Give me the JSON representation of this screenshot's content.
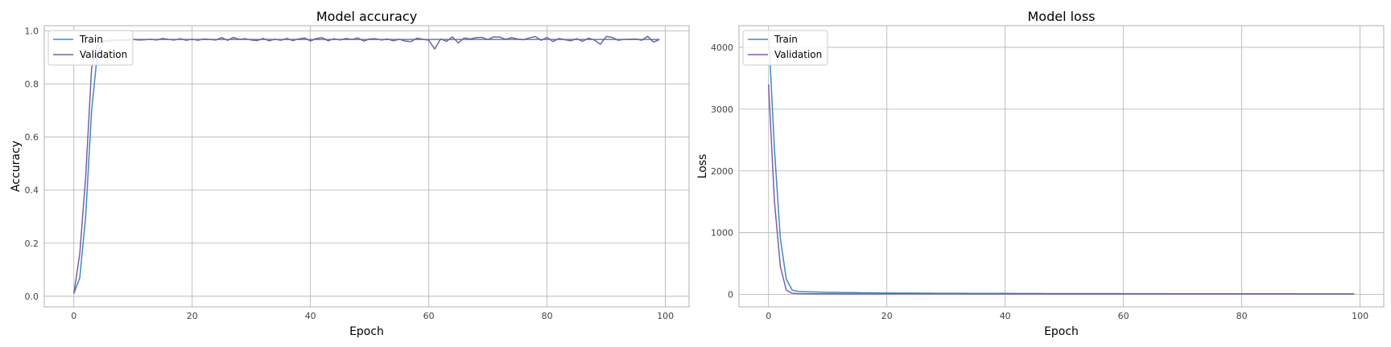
{
  "colors": {
    "train": "#3b8bc2",
    "validation": "#7b5ea7",
    "grid": "#b0b0b0",
    "frame": "#b0b0b0"
  },
  "chart_data": [
    {
      "type": "line",
      "title": "Model accuracy",
      "xlabel": "Epoch",
      "ylabel": "Accuracy",
      "xlim": [
        -5,
        104
      ],
      "ylim": [
        -0.04,
        1.02
      ],
      "xticks": [
        0,
        20,
        40,
        60,
        80,
        100
      ],
      "yticks": [
        0.0,
        0.2,
        0.4,
        0.6,
        0.8,
        1.0
      ],
      "ytick_labels": [
        "0.0",
        "0.2",
        "0.4",
        "0.6",
        "0.8",
        "1.0"
      ],
      "grid": true,
      "legend": "upper left",
      "series": [
        {
          "name": "Train",
          "values": [
            0.01,
            0.07,
            0.3,
            0.7,
            0.92,
            0.96,
            0.965,
            0.966,
            0.967,
            0.967,
            0.968,
            0.968,
            0.968,
            0.968,
            0.968,
            0.968,
            0.968,
            0.968,
            0.968,
            0.968,
            0.968,
            0.968,
            0.968,
            0.968,
            0.968,
            0.968,
            0.968,
            0.968,
            0.968,
            0.968,
            0.968,
            0.968,
            0.968,
            0.968,
            0.968,
            0.968,
            0.968,
            0.968,
            0.968,
            0.968,
            0.968,
            0.968,
            0.968,
            0.968,
            0.968,
            0.968,
            0.968,
            0.968,
            0.968,
            0.968,
            0.968,
            0.968,
            0.968,
            0.968,
            0.968,
            0.968,
            0.968,
            0.968,
            0.968,
            0.968,
            0.968,
            0.968,
            0.968,
            0.968,
            0.968,
            0.968,
            0.968,
            0.968,
            0.968,
            0.968,
            0.968,
            0.968,
            0.968,
            0.968,
            0.968,
            0.968,
            0.968,
            0.968,
            0.968,
            0.968,
            0.968,
            0.968,
            0.968,
            0.968,
            0.968,
            0.968,
            0.968,
            0.968,
            0.968,
            0.968,
            0.968,
            0.968,
            0.968,
            0.968,
            0.968,
            0.968,
            0.968,
            0.968,
            0.968,
            0.968
          ]
        },
        {
          "name": "Validation",
          "values": [
            0.01,
            0.16,
            0.45,
            0.86,
            0.95,
            0.962,
            0.963,
            0.965,
            0.966,
            0.964,
            0.968,
            0.966,
            0.967,
            0.969,
            0.966,
            0.972,
            0.968,
            0.966,
            0.971,
            0.965,
            0.969,
            0.965,
            0.97,
            0.968,
            0.966,
            0.975,
            0.965,
            0.976,
            0.968,
            0.971,
            0.966,
            0.964,
            0.972,
            0.963,
            0.969,
            0.965,
            0.972,
            0.964,
            0.97,
            0.974,
            0.962,
            0.972,
            0.975,
            0.963,
            0.971,
            0.966,
            0.972,
            0.968,
            0.974,
            0.962,
            0.97,
            0.971,
            0.966,
            0.97,
            0.963,
            0.969,
            0.962,
            0.96,
            0.973,
            0.969,
            0.965,
            0.932,
            0.97,
            0.961,
            0.978,
            0.955,
            0.974,
            0.97,
            0.975,
            0.976,
            0.968,
            0.978,
            0.977,
            0.969,
            0.975,
            0.97,
            0.967,
            0.974,
            0.979,
            0.965,
            0.976,
            0.96,
            0.972,
            0.967,
            0.963,
            0.971,
            0.961,
            0.973,
            0.966,
            0.95,
            0.979,
            0.976,
            0.965,
            0.968,
            0.969,
            0.97,
            0.965,
            0.98,
            0.958,
            0.968
          ]
        }
      ]
    },
    {
      "type": "line",
      "title": "Model loss",
      "xlabel": "Epoch",
      "ylabel": "Loss",
      "xlim": [
        -5,
        104
      ],
      "ylim": [
        -200,
        4350
      ],
      "xticks": [
        0,
        20,
        40,
        60,
        80,
        100
      ],
      "yticks": [
        0,
        1000,
        2000,
        3000,
        4000
      ],
      "ytick_labels": [
        "0",
        "1000",
        "2000",
        "3000",
        "4000"
      ],
      "grid": true,
      "legend": "upper left",
      "series": [
        {
          "name": "Train",
          "values": [
            4250,
            2350,
            900,
            250,
            70,
            50,
            45,
            42,
            40,
            38,
            36,
            34,
            32,
            31,
            30,
            29,
            28,
            27,
            26,
            25,
            24,
            24,
            23,
            23,
            22,
            22,
            21,
            21,
            20,
            20,
            20,
            19,
            19,
            19,
            18,
            18,
            18,
            18,
            17,
            17,
            17,
            17,
            16,
            16,
            16,
            16,
            16,
            15,
            15,
            15,
            15,
            15,
            15,
            14,
            14,
            14,
            14,
            14,
            14,
            14,
            13,
            13,
            13,
            13,
            13,
            13,
            13,
            13,
            12,
            12,
            12,
            12,
            12,
            12,
            12,
            12,
            12,
            12,
            11,
            11,
            11,
            11,
            11,
            11,
            11,
            11,
            11,
            11,
            11,
            11,
            10,
            10,
            10,
            10,
            10,
            10,
            10,
            10,
            10,
            10
          ]
        },
        {
          "name": "Validation",
          "values": [
            3400,
            1500,
            450,
            70,
            20,
            15,
            13,
            12,
            12,
            11,
            11,
            11,
            10,
            10,
            10,
            10,
            10,
            10,
            10,
            10,
            9,
            9,
            9,
            9,
            9,
            9,
            9,
            9,
            9,
            9,
            9,
            9,
            9,
            8,
            8,
            8,
            8,
            8,
            8,
            8,
            8,
            8,
            8,
            8,
            8,
            8,
            8,
            8,
            8,
            8,
            8,
            8,
            8,
            8,
            8,
            8,
            8,
            8,
            8,
            8,
            8,
            8,
            8,
            8,
            8,
            8,
            8,
            8,
            8,
            8,
            8,
            8,
            8,
            8,
            8,
            8,
            8,
            8,
            8,
            8,
            8,
            8,
            8,
            8,
            8,
            8,
            8,
            8,
            8,
            8,
            8,
            8,
            8,
            8,
            8,
            8,
            8,
            8,
            8,
            8
          ]
        }
      ]
    }
  ]
}
